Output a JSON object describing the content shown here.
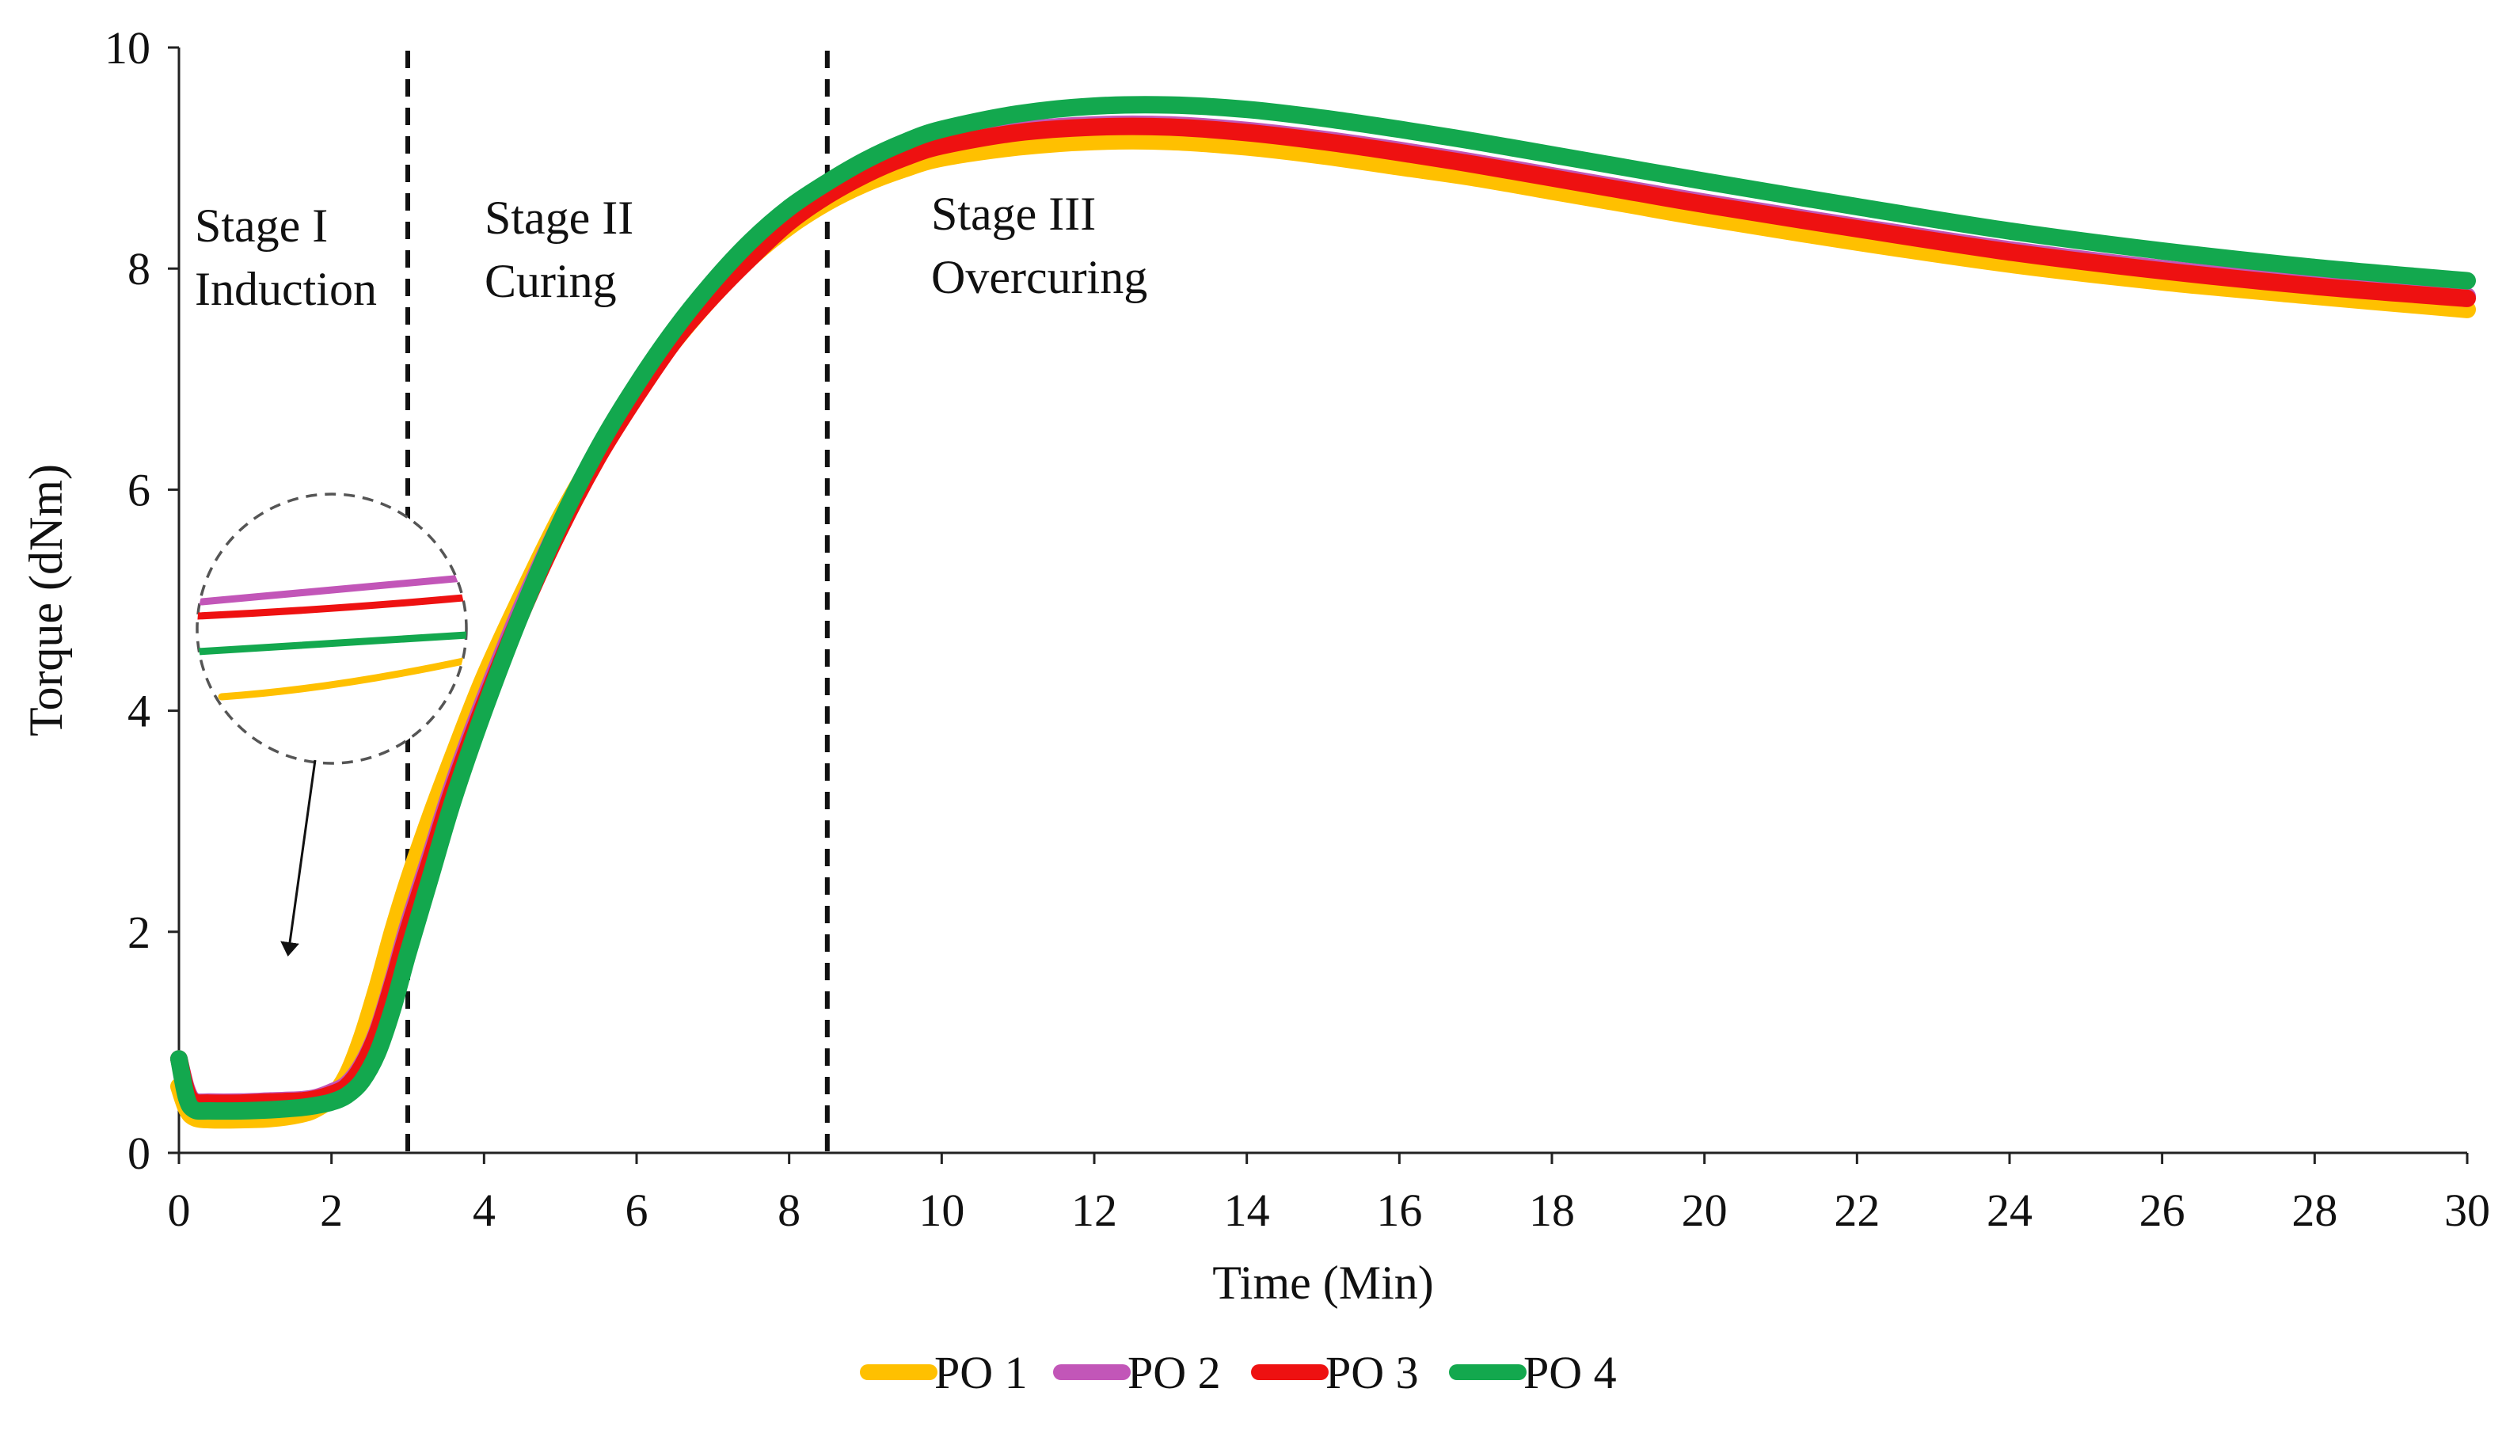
{
  "chart_data": {
    "type": "line",
    "title": "",
    "xlabel": "Time (Min)",
    "ylabel": "Torque (dNm)",
    "xlim": [
      0,
      30
    ],
    "ylim": [
      0,
      10
    ],
    "x_ticks": [
      "0",
      "2",
      "4",
      "6",
      "8",
      "10",
      "12",
      "14",
      "16",
      "18",
      "20",
      "22",
      "24",
      "26",
      "28",
      "30"
    ],
    "y_ticks": [
      "0",
      "2",
      "4",
      "6",
      "8",
      "10"
    ],
    "grid": false,
    "legend_position": "bottom",
    "stage_dividers": [
      3,
      8.5
    ],
    "stages": [
      {
        "line1": "Stage I",
        "line2": "Induction"
      },
      {
        "line1": "Stage II",
        "line2": "Curing"
      },
      {
        "line1": "Stage III",
        "line2": "Overcuring"
      }
    ],
    "x": [
      0,
      0.1,
      0.2,
      0.4,
      0.8,
      1.2,
      1.6,
      1.8,
      2,
      2.2,
      2.4,
      2.6,
      2.8,
      3,
      3.3,
      3.6,
      4,
      4.5,
      5,
      5.5,
      6,
      6.5,
      7,
      7.5,
      8,
      8.5,
      9,
      9.5,
      10,
      11,
      12,
      13,
      14,
      15,
      16,
      17,
      18,
      19,
      20,
      22,
      24,
      26,
      28,
      30
    ],
    "series": [
      {
        "name": "PO 1",
        "color": "#FFC000",
        "values": [
          0.6,
          0.4,
          0.32,
          0.3,
          0.3,
          0.31,
          0.35,
          0.4,
          0.5,
          0.7,
          1.05,
          1.5,
          2.0,
          2.45,
          3.05,
          3.6,
          4.3,
          5.05,
          5.75,
          6.35,
          6.9,
          7.35,
          7.75,
          8.1,
          8.38,
          8.6,
          8.77,
          8.9,
          9.0,
          9.1,
          9.15,
          9.15,
          9.1,
          9.02,
          8.92,
          8.82,
          8.7,
          8.58,
          8.46,
          8.24,
          8.04,
          7.88,
          7.75,
          7.63
        ]
      },
      {
        "name": "PO 2",
        "color": "#C256B8",
        "values": [
          0.85,
          0.58,
          0.47,
          0.46,
          0.46,
          0.47,
          0.48,
          0.5,
          0.55,
          0.62,
          0.8,
          1.1,
          1.55,
          2.05,
          2.7,
          3.35,
          4.1,
          4.95,
          5.7,
          6.35,
          6.9,
          7.4,
          7.8,
          8.15,
          8.45,
          8.68,
          8.87,
          9.02,
          9.13,
          9.25,
          9.3,
          9.3,
          9.25,
          9.17,
          9.07,
          8.96,
          8.84,
          8.72,
          8.6,
          8.38,
          8.17,
          8.0,
          7.86,
          7.75
        ]
      },
      {
        "name": "PO 3",
        "color": "#EE1111",
        "values": [
          0.85,
          0.56,
          0.46,
          0.45,
          0.45,
          0.46,
          0.47,
          0.49,
          0.53,
          0.6,
          0.78,
          1.08,
          1.52,
          2.0,
          2.65,
          3.3,
          4.05,
          4.9,
          5.65,
          6.3,
          6.85,
          7.35,
          7.75,
          8.1,
          8.42,
          8.66,
          8.85,
          9.0,
          9.11,
          9.23,
          9.28,
          9.28,
          9.23,
          9.15,
          9.05,
          8.94,
          8.82,
          8.7,
          8.58,
          8.36,
          8.15,
          7.98,
          7.84,
          7.73
        ]
      },
      {
        "name": "PO 4",
        "color": "#13A84E",
        "values": [
          0.85,
          0.5,
          0.39,
          0.38,
          0.38,
          0.39,
          0.41,
          0.43,
          0.46,
          0.52,
          0.65,
          0.9,
          1.3,
          1.8,
          2.5,
          3.2,
          4.0,
          4.9,
          5.7,
          6.38,
          6.95,
          7.45,
          7.88,
          8.25,
          8.55,
          8.78,
          8.98,
          9.14,
          9.26,
          9.4,
          9.47,
          9.48,
          9.44,
          9.36,
          9.26,
          9.15,
          9.03,
          8.91,
          8.79,
          8.56,
          8.34,
          8.16,
          8.01,
          7.89
        ]
      }
    ]
  }
}
